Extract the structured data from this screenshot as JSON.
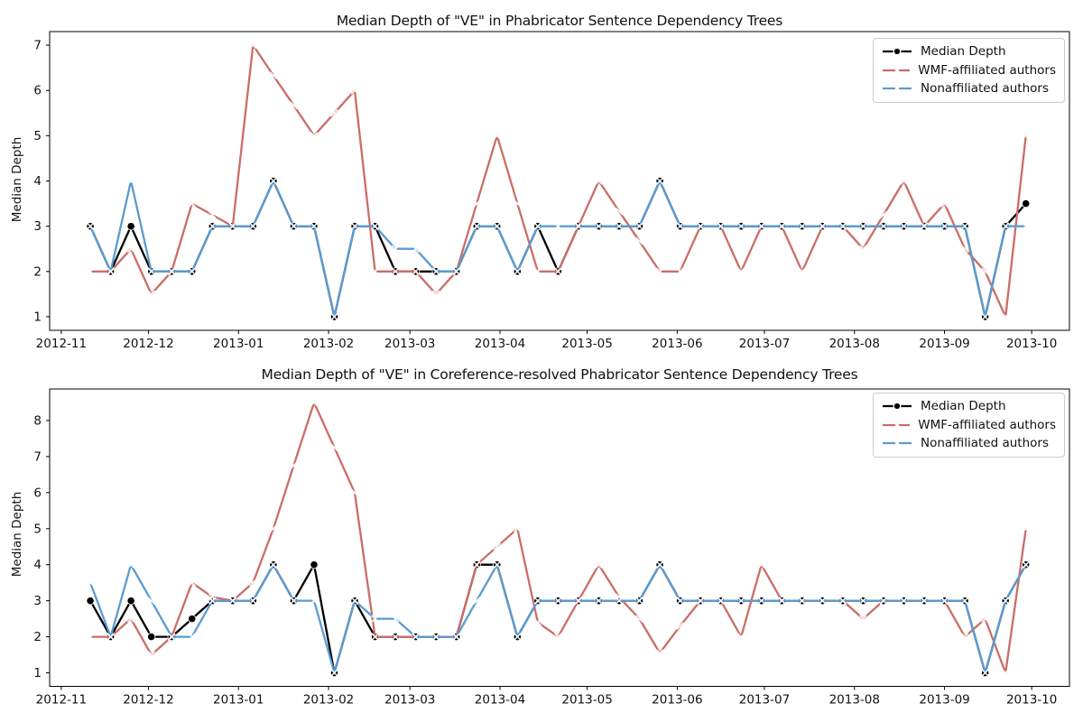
{
  "figure": {
    "background": "#ffffff",
    "text_color": "#111111"
  },
  "chart_data": [
    {
      "type": "line",
      "title": "Median Depth of \"VE\" in Phabricator Sentence Dependency Trees",
      "xlabel": "",
      "ylabel": "Median Depth",
      "grid": false,
      "legend_position": "upper right",
      "x_ticks": [
        "2012-11",
        "2012-12",
        "2013-01",
        "2013-02",
        "2013-03",
        "2013-04",
        "2013-05",
        "2013-06",
        "2013-07",
        "2013-08",
        "2013-09",
        "2013-10"
      ],
      "y_ticks": [
        1,
        2,
        3,
        4,
        5,
        6,
        7
      ],
      "ylim": [
        0.7,
        7.3
      ],
      "x": [
        "2012-11-11",
        "2012-11-18",
        "2012-11-25",
        "2012-12-02",
        "2012-12-09",
        "2012-12-16",
        "2012-12-23",
        "2012-12-30",
        "2013-01-06",
        "2013-01-13",
        "2013-01-20",
        "2013-01-27",
        "2013-02-03",
        "2013-02-10",
        "2013-02-17",
        "2013-02-24",
        "2013-03-03",
        "2013-03-10",
        "2013-03-17",
        "2013-03-24",
        "2013-03-31",
        "2013-04-07",
        "2013-04-14",
        "2013-04-21",
        "2013-04-28",
        "2013-05-05",
        "2013-05-12",
        "2013-05-19",
        "2013-05-26",
        "2013-06-02",
        "2013-06-09",
        "2013-06-16",
        "2013-06-23",
        "2013-06-30",
        "2013-07-07",
        "2013-07-14",
        "2013-07-21",
        "2013-07-28",
        "2013-08-04",
        "2013-08-11",
        "2013-08-18",
        "2013-08-25",
        "2013-09-01",
        "2013-09-08",
        "2013-09-15",
        "2013-09-22",
        "2013-09-29"
      ],
      "series": [
        {
          "name": "Median Depth",
          "color": "#000000",
          "linestyle": "solid",
          "marker": "o",
          "values": [
            3,
            2,
            3,
            2,
            2,
            2,
            3,
            3,
            3,
            4,
            3,
            3,
            1,
            3,
            3,
            2,
            2,
            2,
            2,
            3,
            3,
            2,
            3,
            2,
            3,
            3,
            3,
            3,
            4,
            3,
            3,
            3,
            3,
            3,
            3,
            3,
            3,
            3,
            3,
            3,
            3,
            3,
            3,
            3,
            1,
            3,
            3.5
          ]
        },
        {
          "name": "WMF-affiliated authors",
          "color": "#cb6d66",
          "linestyle": "solid",
          "marker": "x-white",
          "values": [
            2,
            2,
            2.5,
            1.5,
            2,
            3.5,
            3.25,
            3,
            7,
            6.33,
            5.67,
            5,
            5.5,
            6,
            2,
            2,
            2,
            1.5,
            2,
            3.5,
            5,
            3.5,
            2,
            2,
            3,
            4,
            3.33,
            2.67,
            2,
            2,
            3,
            3,
            2,
            3,
            3,
            2,
            3,
            3,
            2.5,
            3.25,
            4,
            3,
            3.5,
            2.5,
            2,
            1,
            5
          ]
        },
        {
          "name": "Nonaffiliated authors",
          "color": "#5b9bd1",
          "linestyle": "solid",
          "marker": "x-white",
          "values": [
            3,
            2,
            4,
            2,
            2,
            2,
            3,
            3,
            3,
            4,
            3,
            3,
            1,
            3,
            3,
            2.5,
            2.5,
            2,
            2,
            3,
            3,
            2,
            3,
            3,
            3,
            3,
            3,
            3,
            4,
            3,
            3,
            3,
            3,
            3,
            3,
            3,
            3,
            3,
            3,
            3,
            3,
            3,
            3,
            3,
            1,
            3,
            3
          ]
        }
      ]
    },
    {
      "type": "line",
      "title": "Median Depth of \"VE\" in Coreference-resolved Phabricator Sentence Dependency Trees",
      "xlabel": "",
      "ylabel": "Median Depth",
      "grid": false,
      "legend_position": "upper right",
      "x_ticks": [
        "2012-11",
        "2012-12",
        "2013-01",
        "2013-02",
        "2013-03",
        "2013-04",
        "2013-05",
        "2013-06",
        "2013-07",
        "2013-08",
        "2013-09",
        "2013-10"
      ],
      "y_ticks": [
        1,
        2,
        3,
        4,
        5,
        6,
        7,
        8
      ],
      "ylim": [
        0.625,
        8.875
      ],
      "x": [
        "2012-11-11",
        "2012-11-18",
        "2012-11-25",
        "2012-12-02",
        "2012-12-09",
        "2012-12-16",
        "2012-12-23",
        "2012-12-30",
        "2013-01-06",
        "2013-01-13",
        "2013-01-20",
        "2013-01-27",
        "2013-02-03",
        "2013-02-10",
        "2013-02-17",
        "2013-02-24",
        "2013-03-03",
        "2013-03-10",
        "2013-03-17",
        "2013-03-24",
        "2013-03-31",
        "2013-04-07",
        "2013-04-14",
        "2013-04-21",
        "2013-04-28",
        "2013-05-05",
        "2013-05-12",
        "2013-05-19",
        "2013-05-26",
        "2013-06-02",
        "2013-06-09",
        "2013-06-16",
        "2013-06-23",
        "2013-06-30",
        "2013-07-07",
        "2013-07-14",
        "2013-07-21",
        "2013-07-28",
        "2013-08-04",
        "2013-08-11",
        "2013-08-18",
        "2013-08-25",
        "2013-09-01",
        "2013-09-08",
        "2013-09-15",
        "2013-09-22",
        "2013-09-29"
      ],
      "series": [
        {
          "name": "Median Depth",
          "color": "#000000",
          "linestyle": "solid",
          "marker": "o",
          "values": [
            3,
            2,
            3,
            2,
            2,
            2.5,
            3,
            3,
            3,
            4,
            3,
            4,
            1,
            3,
            2,
            2,
            2,
            2,
            2,
            4,
            4,
            2,
            3,
            3,
            3,
            3,
            3,
            3,
            4,
            3,
            3,
            3,
            3,
            3,
            3,
            3,
            3,
            3,
            3,
            3,
            3,
            3,
            3,
            3,
            1,
            3,
            4
          ]
        },
        {
          "name": "WMF-affiliated authors",
          "color": "#cb6d66",
          "linestyle": "solid",
          "marker": "x-white",
          "values": [
            2,
            2,
            2.5,
            1.5,
            2,
            3.5,
            3.1,
            3,
            3.5,
            5,
            6.75,
            8.5,
            7.25,
            6,
            2,
            2,
            2,
            2,
            2,
            4,
            4.5,
            5,
            2.4,
            2,
            3,
            4,
            3.1,
            2.5,
            1.55,
            2.3,
            3,
            3,
            2,
            4,
            3,
            3,
            3,
            3,
            2.5,
            3,
            3,
            3,
            3,
            2,
            2.5,
            1,
            5
          ]
        },
        {
          "name": "Nonaffiliated authors",
          "color": "#5b9bd1",
          "linestyle": "solid",
          "marker": "x-white",
          "values": [
            3.5,
            2,
            4,
            3,
            2,
            2,
            3,
            3,
            3,
            4,
            3,
            3,
            1,
            3,
            2.5,
            2.5,
            2,
            2,
            2,
            3,
            4,
            2,
            3,
            3,
            3,
            3,
            3,
            3,
            4,
            3,
            3,
            3,
            3,
            3,
            3,
            3,
            3,
            3,
            3,
            3,
            3,
            3,
            3,
            3,
            1,
            3,
            4
          ]
        }
      ]
    }
  ]
}
